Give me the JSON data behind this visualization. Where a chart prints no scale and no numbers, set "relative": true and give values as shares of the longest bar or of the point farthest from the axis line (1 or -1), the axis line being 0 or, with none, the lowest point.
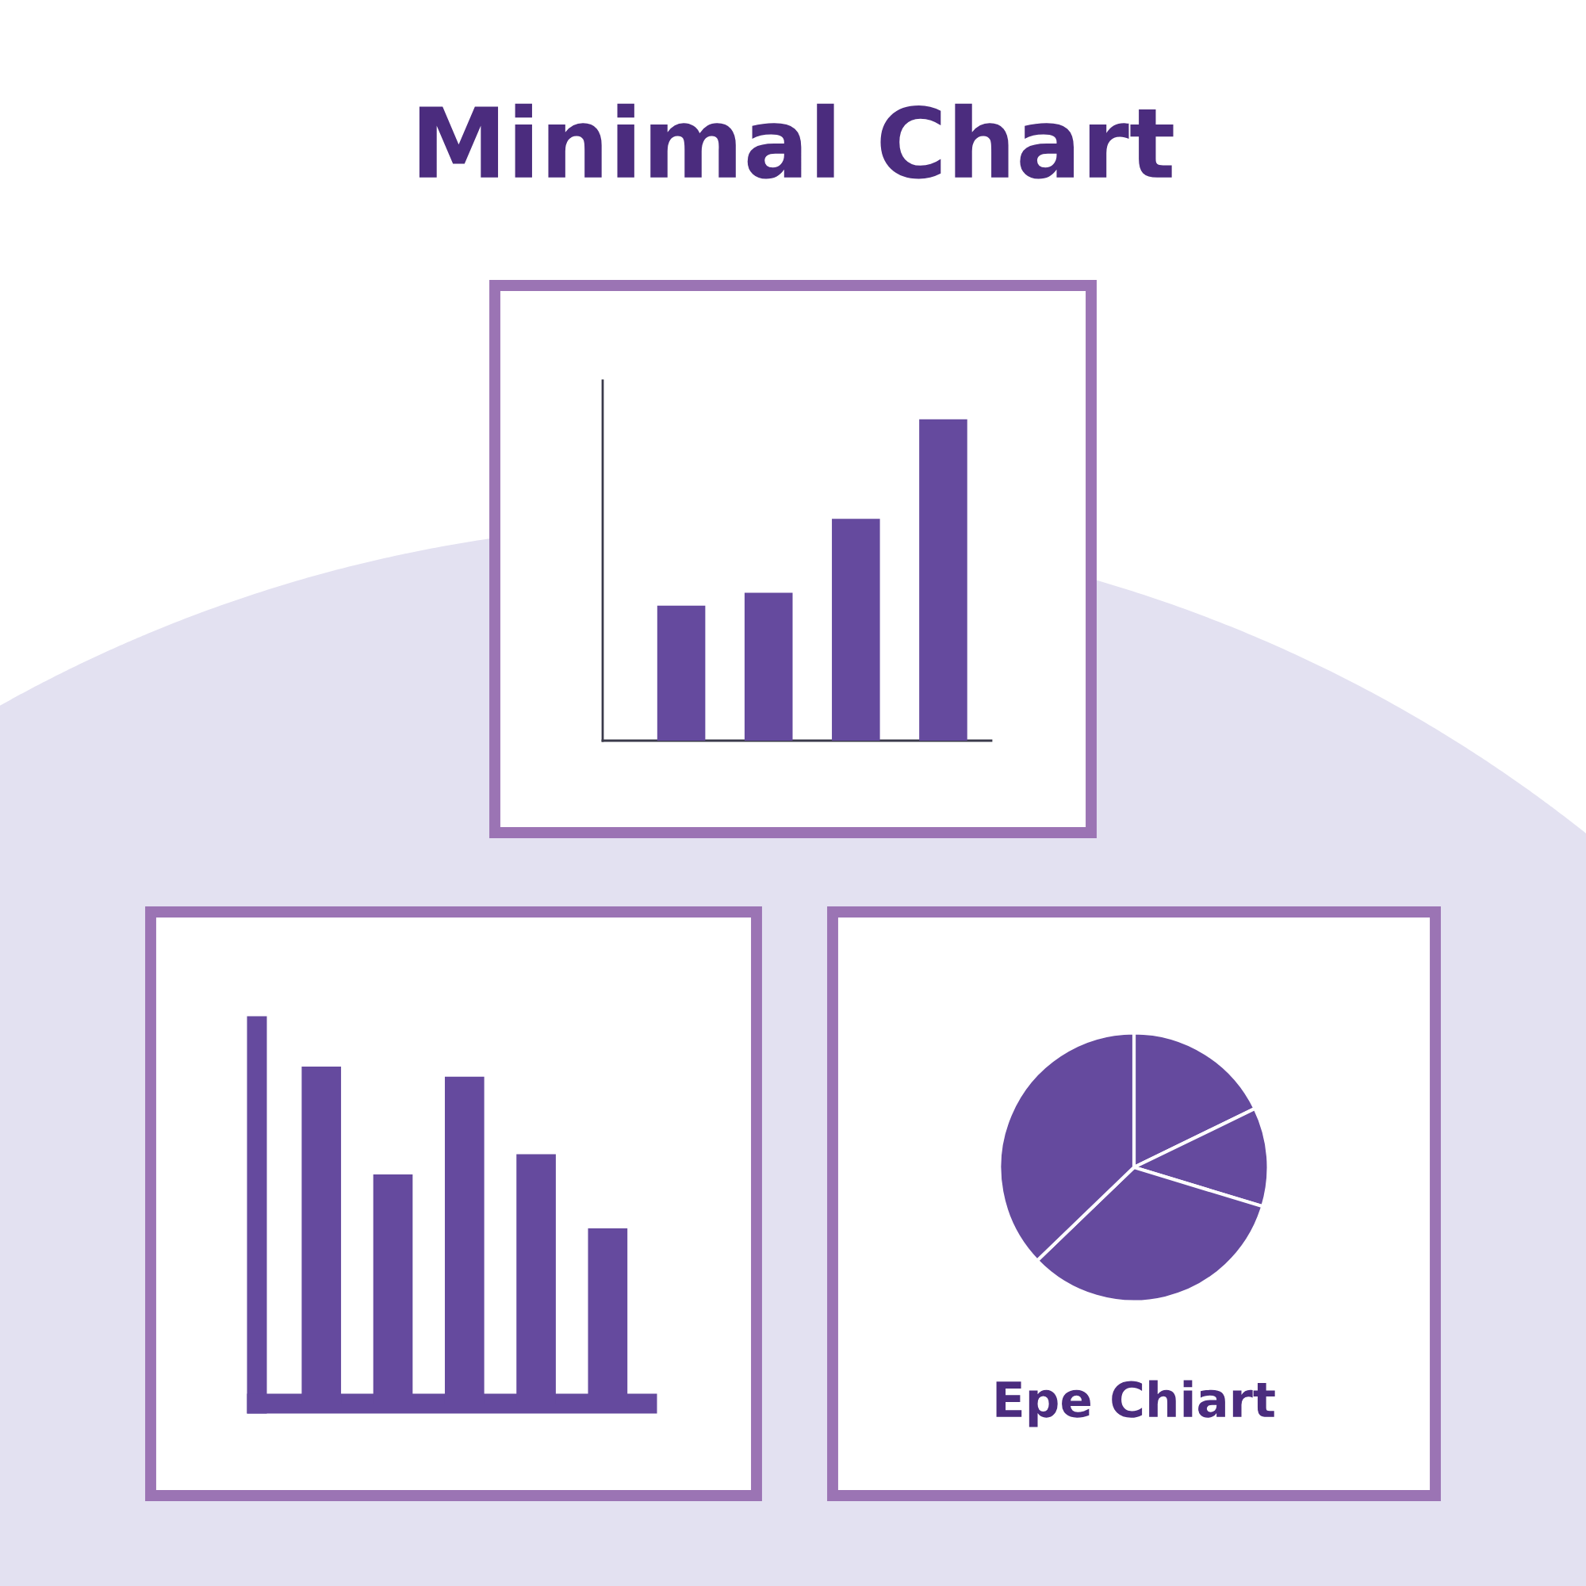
{
  "chart_data": [
    {
      "type": "bar",
      "title": "Minimal Chart",
      "categories": [
        null,
        null,
        null,
        null
      ],
      "values": [
        0.42,
        0.46,
        0.69,
        1.0
      ],
      "color": "#654a9e",
      "relative": true
    },
    {
      "type": "bar",
      "categories": [
        null,
        null,
        null,
        null,
        null
      ],
      "values": [
        1.0,
        0.68,
        0.97,
        0.74,
        0.52
      ],
      "color": "#654a9e",
      "relative": true
    },
    {
      "type": "pie",
      "categories": [
        null,
        null,
        null,
        null
      ],
      "values": [
        17.8,
        11.9,
        33.1,
        37.2
      ],
      "colors": [
        "#654a9e",
        "#654a9e",
        "#654a9e",
        "#654a9e"
      ],
      "annotations": [
        "Epe Chiart"
      ]
    }
  ]
}
